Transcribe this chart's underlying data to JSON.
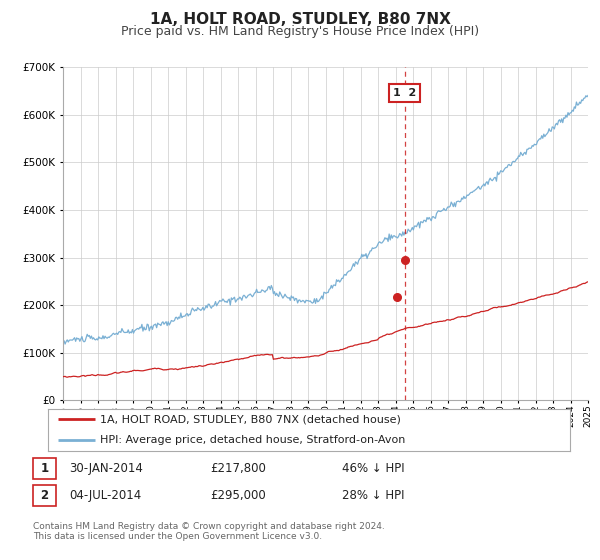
{
  "title": "1A, HOLT ROAD, STUDLEY, B80 7NX",
  "subtitle": "Price paid vs. HM Land Registry's House Price Index (HPI)",
  "title_fontsize": 11,
  "subtitle_fontsize": 9,
  "background_color": "#ffffff",
  "grid_color": "#cccccc",
  "hpi_color": "#7ab0d4",
  "price_color": "#cc2222",
  "vline_color": "#cc2222",
  "point1_date_num": 2014.08,
  "point2_date_num": 2014.54,
  "point1_price": 217800,
  "point2_price": 295000,
  "ylim": [
    0,
    700000
  ],
  "xlim_start": 1995,
  "xlim_end": 2025,
  "legend_label_price": "1A, HOLT ROAD, STUDLEY, B80 7NX (detached house)",
  "legend_label_hpi": "HPI: Average price, detached house, Stratford-on-Avon",
  "table_row1": [
    "1",
    "30-JAN-2014",
    "£217,800",
    "46% ↓ HPI"
  ],
  "table_row2": [
    "2",
    "04-JUL-2014",
    "£295,000",
    "28% ↓ HPI"
  ],
  "footnote": "Contains HM Land Registry data © Crown copyright and database right 2024.\nThis data is licensed under the Open Government Licence v3.0."
}
